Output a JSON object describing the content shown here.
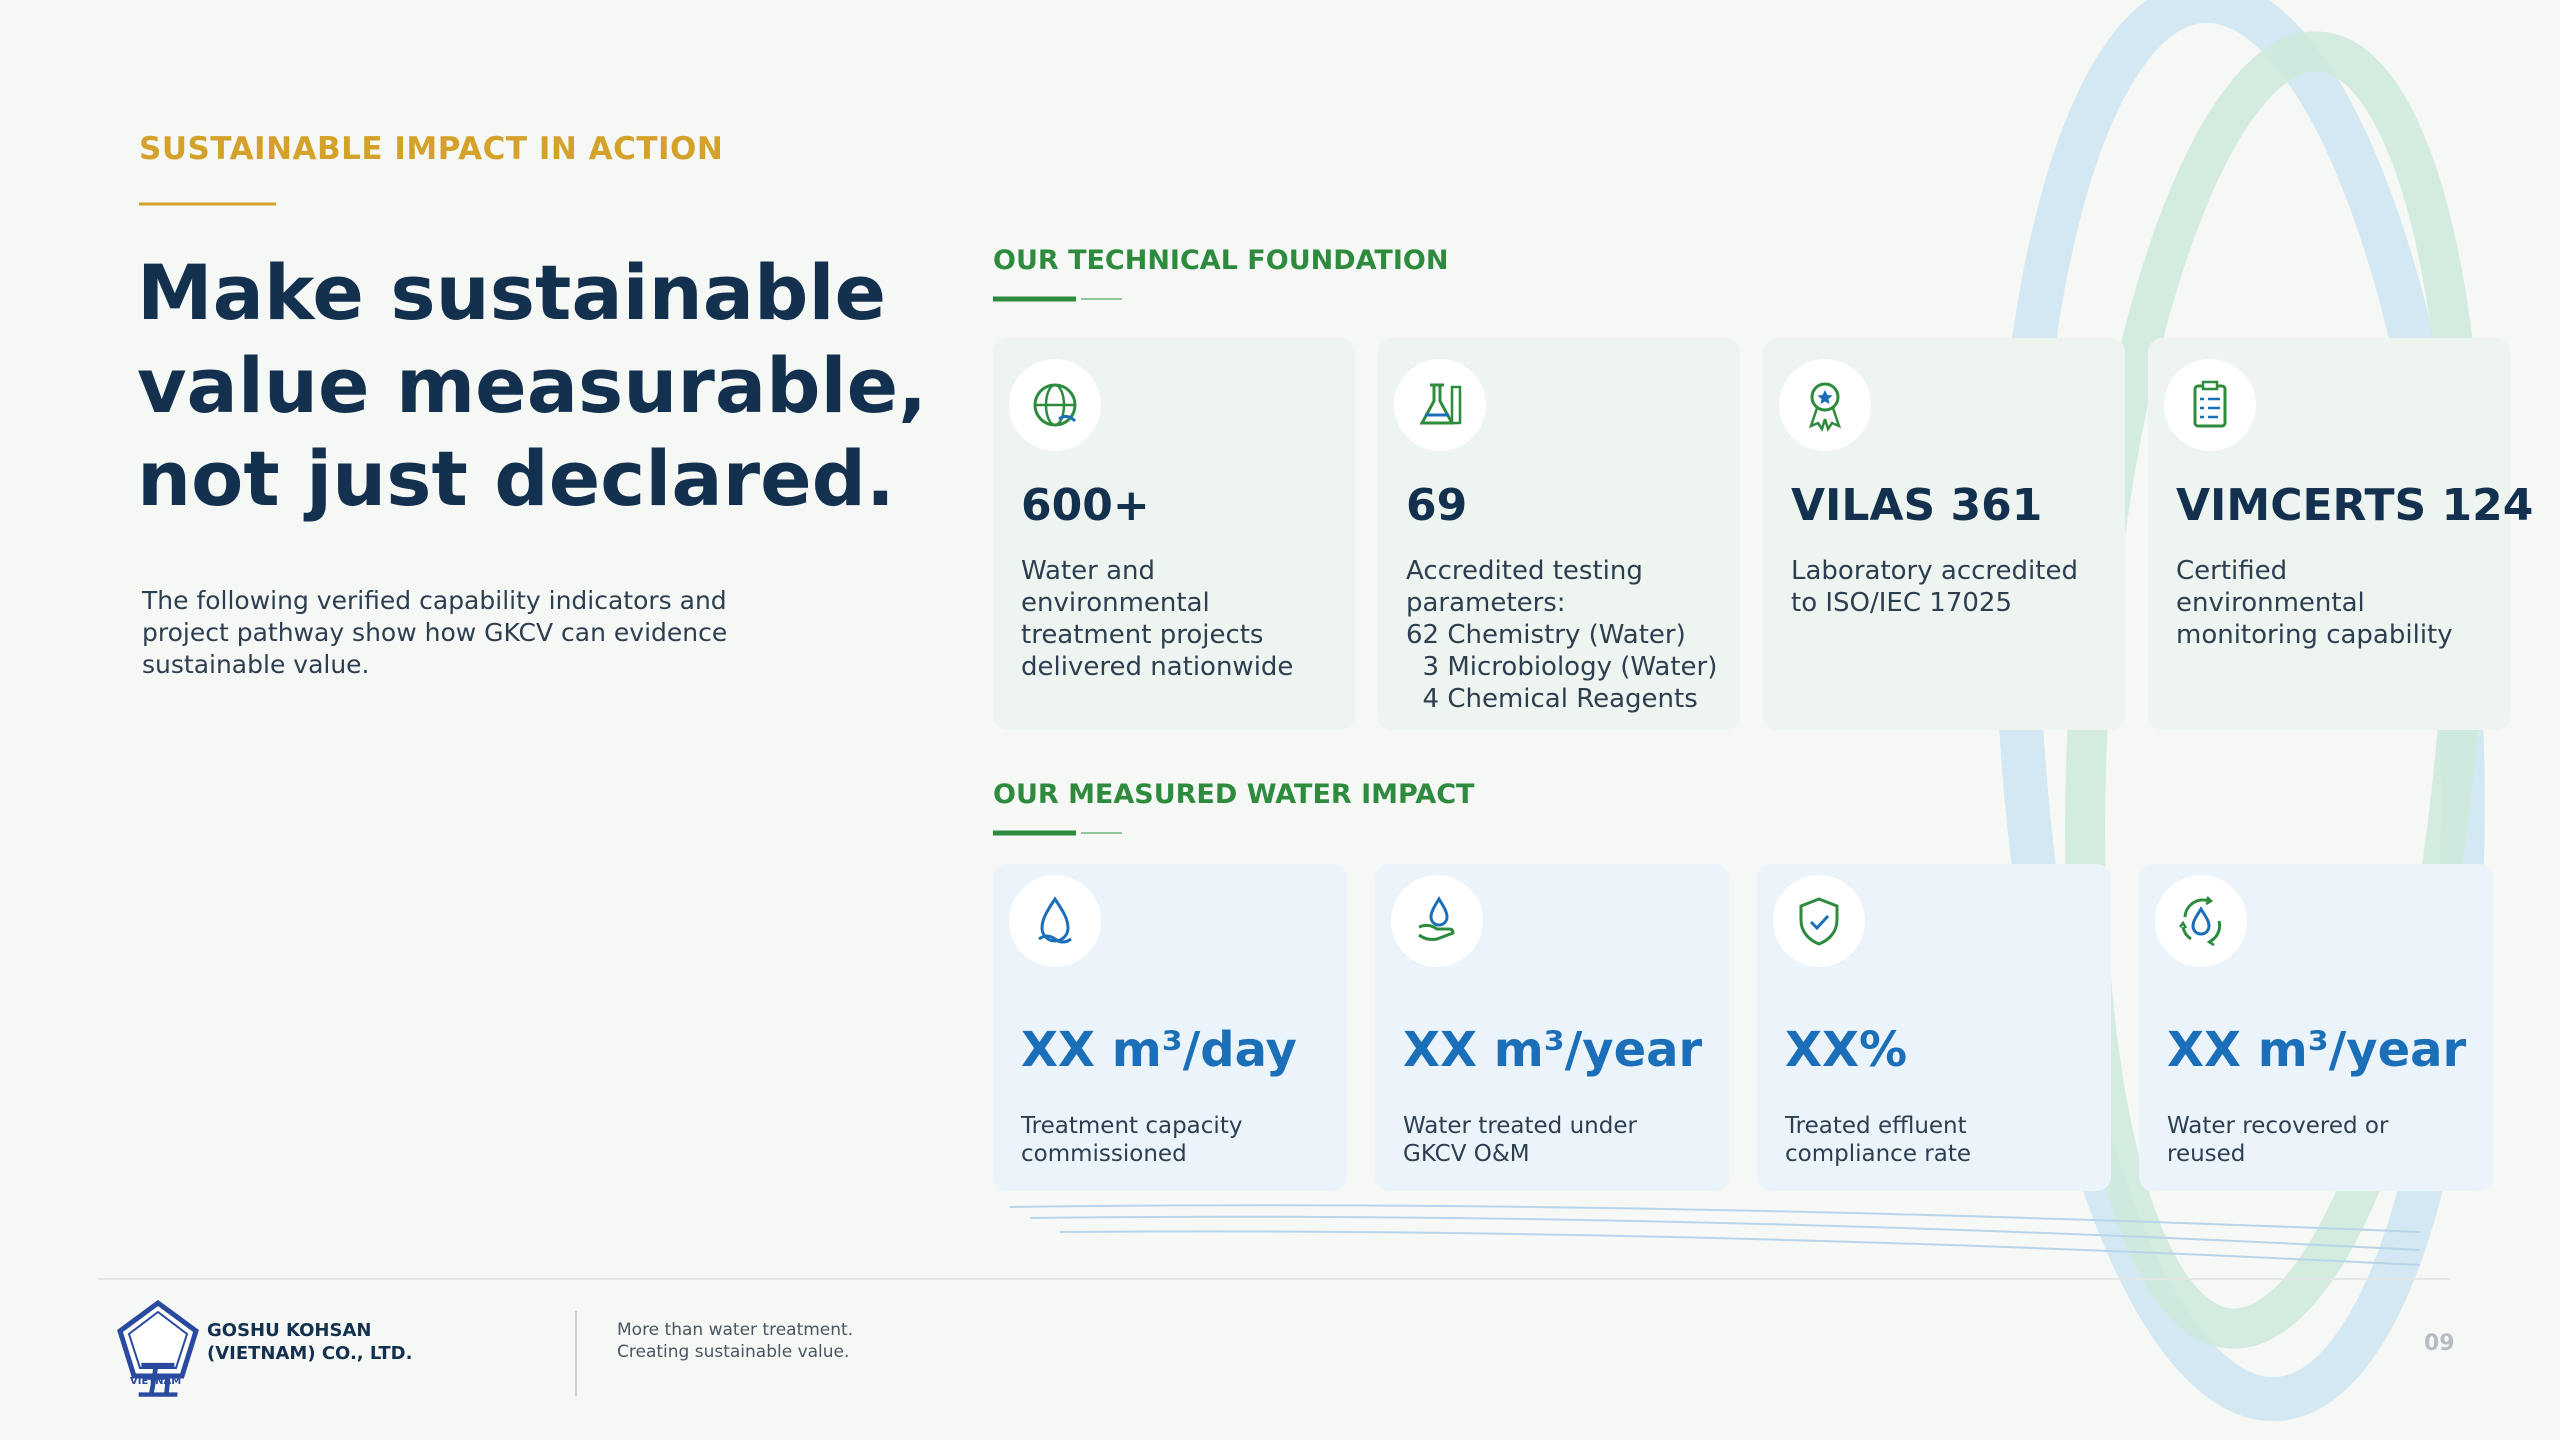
{
  "eyebrow": "SUSTAINABLE IMPACT IN ACTION",
  "headline": [
    "Make sustainable",
    "value measurable,",
    "not just declared."
  ],
  "intro": [
    "The following verified capability indicators and",
    "project pathway show how GKCV can evidence",
    "sustainable value."
  ],
  "technical": {
    "title": "OUR TECHNICAL FOUNDATION",
    "cards": [
      {
        "value": "600+",
        "description": [
          "Water and",
          "environmental",
          "treatment projects",
          "delivered nationwide"
        ]
      },
      {
        "value": "69",
        "description": [
          "Accredited testing",
          "parameters:",
          "62 Chemistry (Water)",
          "  3 Microbiology (Water)",
          "  4 Chemical Reagents"
        ]
      },
      {
        "value": "VILAS 361",
        "description": [
          "Laboratory accredited",
          "to ISO/IEC 17025"
        ]
      },
      {
        "value": "VIMCERTS 124",
        "description": [
          "Certified",
          "environmental",
          "monitoring capability"
        ]
      }
    ]
  },
  "impact": {
    "title": "OUR MEASURED WATER IMPACT",
    "cards": [
      {
        "value": "XX m³/day",
        "description": [
          "Treatment capacity",
          "commissioned"
        ]
      },
      {
        "value": "XX m³/year",
        "description": [
          "Water treated under",
          "GKCV O&M"
        ]
      },
      {
        "value": "XX%",
        "description": [
          "Treated effluent",
          "compliance rate"
        ]
      },
      {
        "value": "XX m³/year",
        "description": [
          "Water recovered or",
          "reused"
        ]
      }
    ]
  },
  "footer": {
    "logo_mark": "五",
    "logo_text": "VIETNAM",
    "company": [
      "GOSHU KOHSAN",
      "(VIETNAM) CO., LTD."
    ],
    "tagline": [
      "More than water treatment.",
      "Creating sustainable value."
    ],
    "page": "09"
  }
}
